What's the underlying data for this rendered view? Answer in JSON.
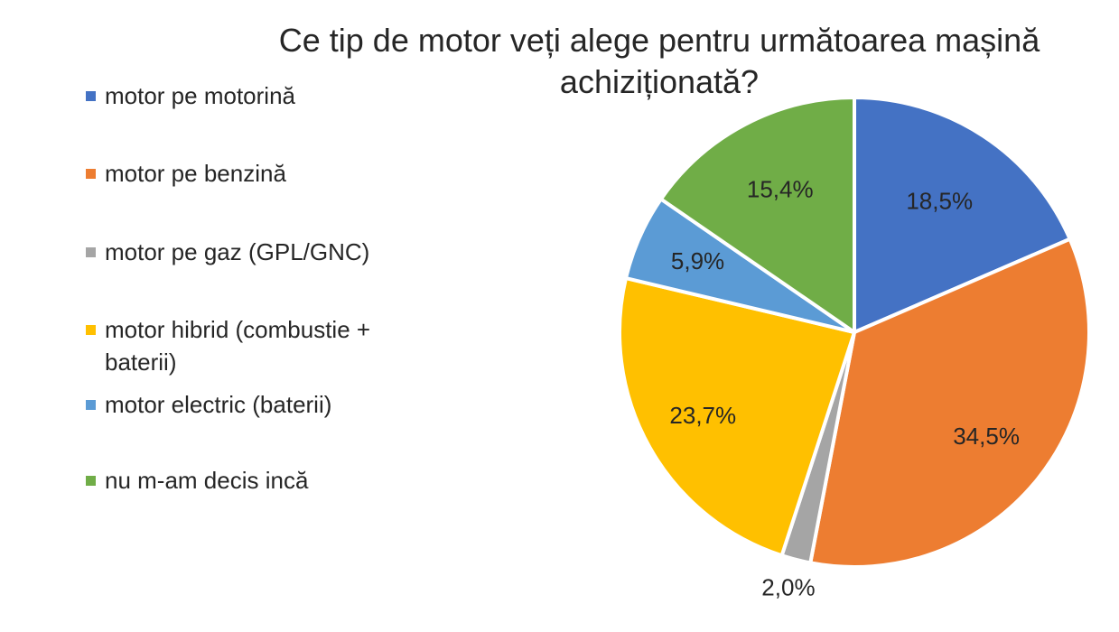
{
  "chart_data": {
    "type": "pie",
    "title": "Ce tip de motor veți alege pentru următoarea mașină achiziționată?",
    "categories": [
      "motor pe motorină",
      "motor pe benzină",
      "motor pe gaz (GPL/GNC)",
      "motor hibrid (combustie + baterii)",
      "motor electric (baterii)",
      "nu m-am decis incă"
    ],
    "values": [
      18.5,
      34.5,
      2.0,
      23.7,
      5.9,
      15.4
    ],
    "data_labels": [
      "18,5%",
      "34,5%",
      "2,0%",
      "23,7%",
      "5,9%",
      "15,4%"
    ],
    "colors": [
      "#4472C4",
      "#ED7D31",
      "#A5A5A5",
      "#FFC000",
      "#5B9BD5",
      "#70AD47"
    ],
    "legend_position": "left"
  }
}
